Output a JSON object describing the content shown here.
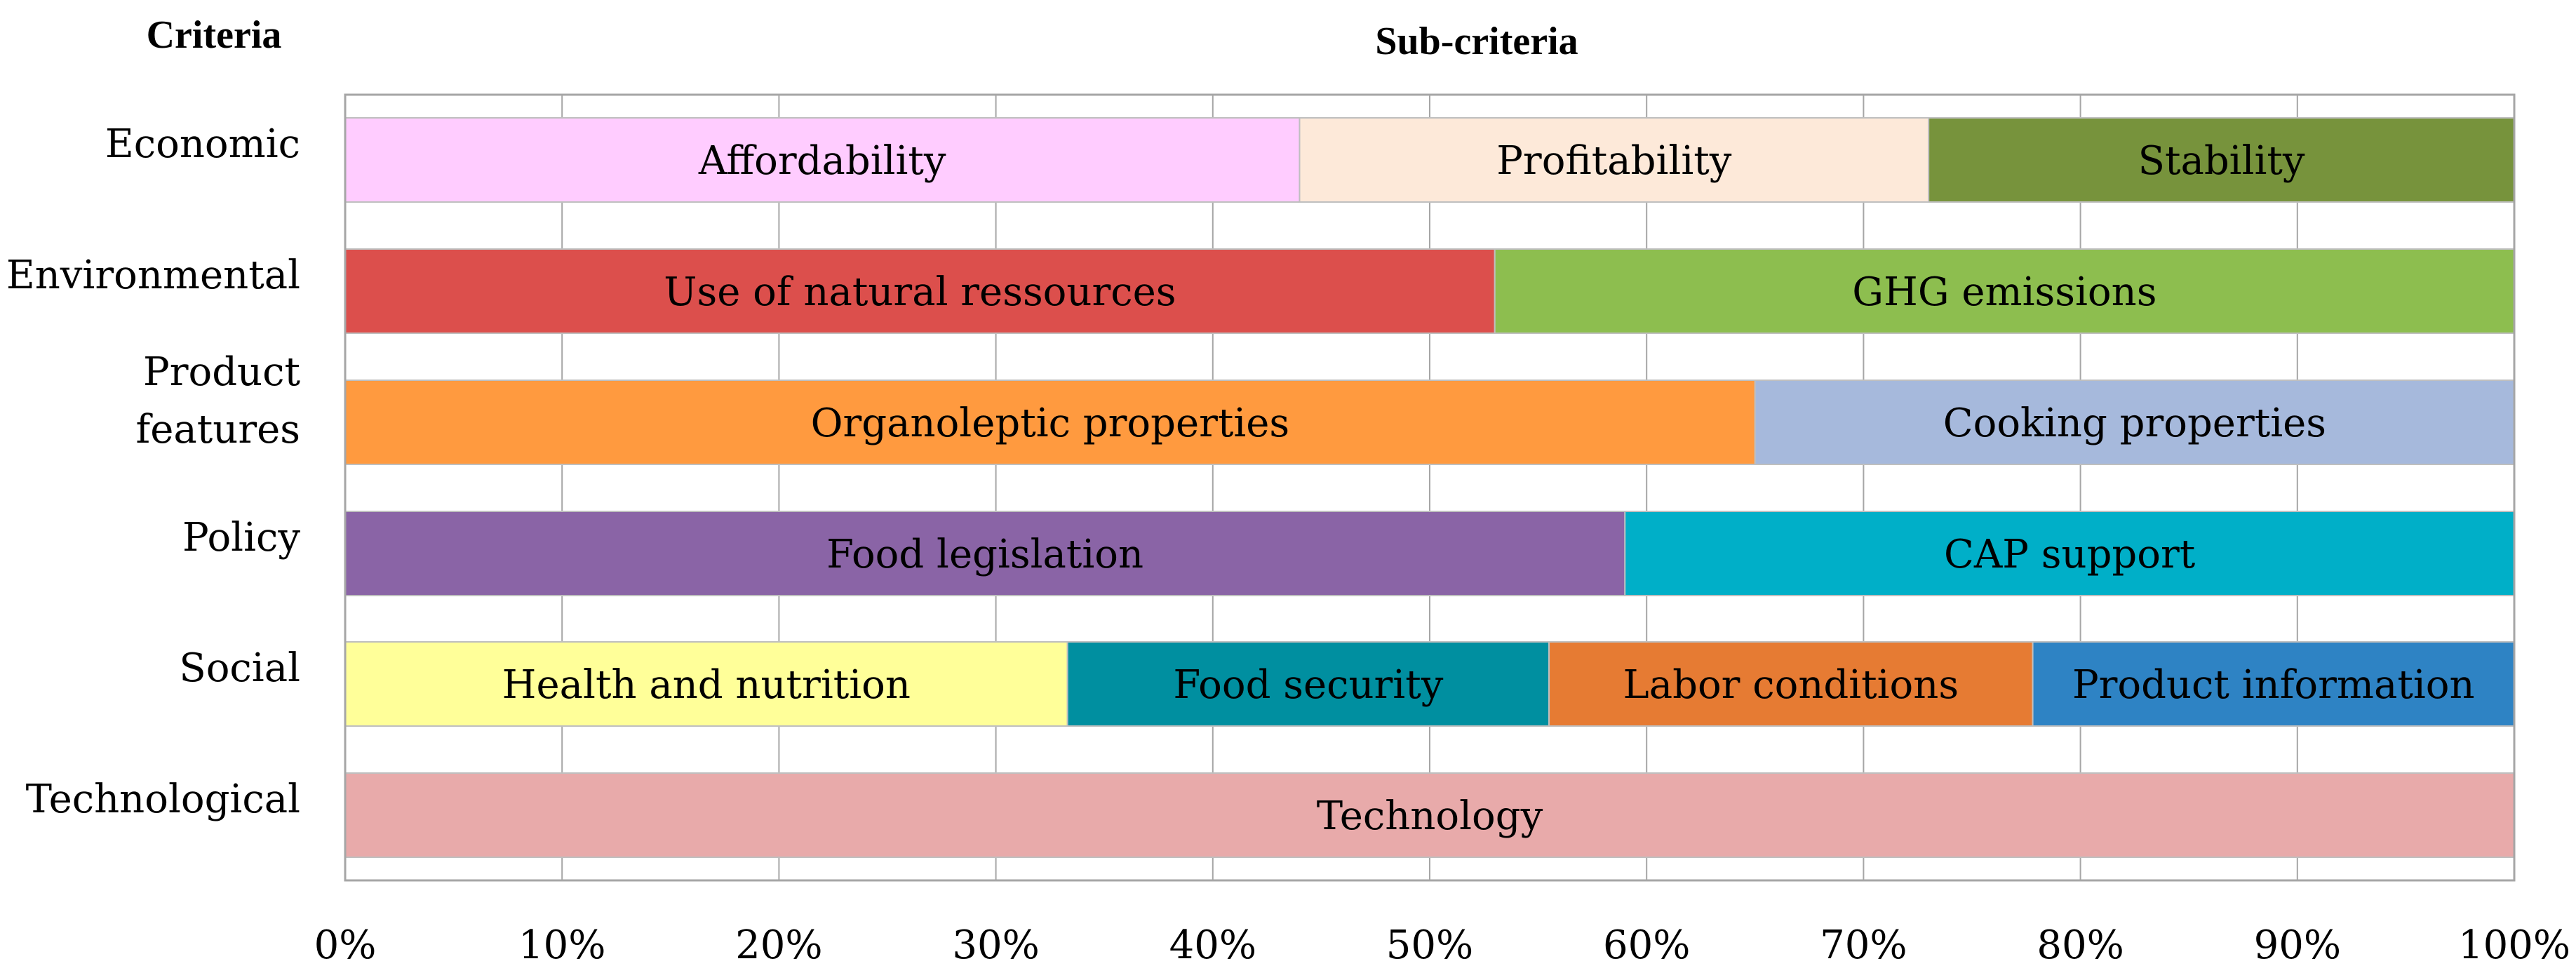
{
  "chart_data": {
    "type": "stacked-bar-horizontal-100",
    "criteria_header": "Criteria",
    "subcriteria_header": "Sub-criteria",
    "x_tick_labels": [
      "0%",
      "10%",
      "20%",
      "30%",
      "40%",
      "50%",
      "60%",
      "70%",
      "80%",
      "90%",
      "100%"
    ],
    "xlim": [
      0,
      100
    ],
    "grid": true,
    "rows": [
      {
        "criterion": [
          "Economic"
        ],
        "segments": [
          {
            "label": "Affordability",
            "start": 0,
            "end": 44,
            "color": "#FFCCFF"
          },
          {
            "label": "Profitability",
            "start": 44,
            "end": 73,
            "color": "#FDE9D9"
          },
          {
            "label": "Stability",
            "start": 73,
            "end": 100,
            "color": "#77933C"
          }
        ]
      },
      {
        "criterion": [
          "Environmental"
        ],
        "segments": [
          {
            "label": "Use of natural ressources",
            "start": 0,
            "end": 53,
            "color": "#DC4F4C"
          },
          {
            "label": "GHG emissions",
            "start": 53,
            "end": 100,
            "color": "#8DBE4F"
          }
        ]
      },
      {
        "criterion": [
          "Product",
          "features"
        ],
        "segments": [
          {
            "label": "Organoleptic properties",
            "start": 0,
            "end": 65,
            "color": "#FF9A3F"
          },
          {
            "label": "Cooking properties",
            "start": 65,
            "end": 100,
            "color": "#A6B9DC"
          }
        ]
      },
      {
        "criterion": [
          "Policy"
        ],
        "segments": [
          {
            "label": "Food legislation",
            "start": 0,
            "end": 59,
            "color": "#8A64A6"
          },
          {
            "label": "CAP support",
            "start": 59,
            "end": 100,
            "color": "#00AFC8"
          }
        ]
      },
      {
        "criterion": [
          "Social"
        ],
        "segments": [
          {
            "label": "Health and nutrition",
            "start": 0,
            "end": 33.3,
            "color": "#FFFF99"
          },
          {
            "label": "Food security",
            "start": 33.3,
            "end": 55.5,
            "color": "#008FA0"
          },
          {
            "label": "Labor conditions",
            "start": 55.5,
            "end": 77.8,
            "color": "#E67B33"
          },
          {
            "label": "Product information",
            "start": 77.8,
            "end": 100,
            "color": "#2E83C4"
          }
        ]
      },
      {
        "criterion": [
          "Technological"
        ],
        "segments": [
          {
            "label": "Technology",
            "start": 0,
            "end": 100,
            "color": "#E8AAAA"
          }
        ]
      }
    ]
  }
}
